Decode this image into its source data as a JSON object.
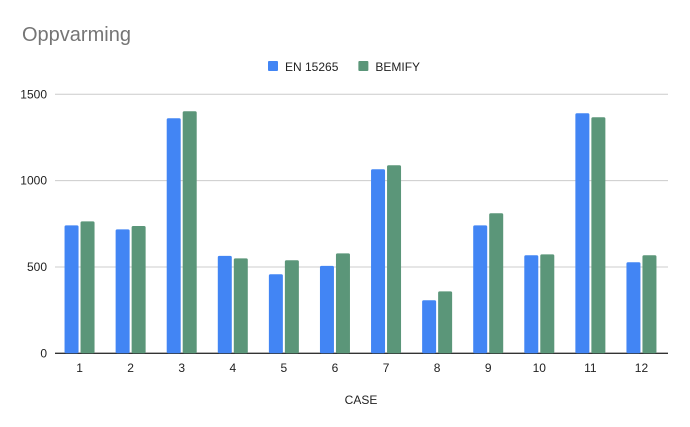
{
  "chart_data": {
    "type": "bar",
    "title": "Oppvarming",
    "xlabel": "CASE",
    "ylabel": "",
    "ylim": [
      0,
      1500
    ],
    "yticks": [
      0,
      500,
      1000,
      1500
    ],
    "grid": true,
    "legend_position": "top",
    "categories": [
      "1",
      "2",
      "3",
      "4",
      "5",
      "6",
      "7",
      "8",
      "9",
      "10",
      "11",
      "12"
    ],
    "series": [
      {
        "name": "EN 15265",
        "color": "#4285f4",
        "values": [
          741,
          718,
          1361,
          564,
          458,
          506,
          1066,
          307,
          741,
          568,
          1390,
          527
        ]
      },
      {
        "name": "BEMIFY",
        "color": "#5b9679",
        "values": [
          764,
          737,
          1402,
          550,
          539,
          579,
          1089,
          359,
          811,
          573,
          1367,
          568
        ]
      }
    ]
  }
}
